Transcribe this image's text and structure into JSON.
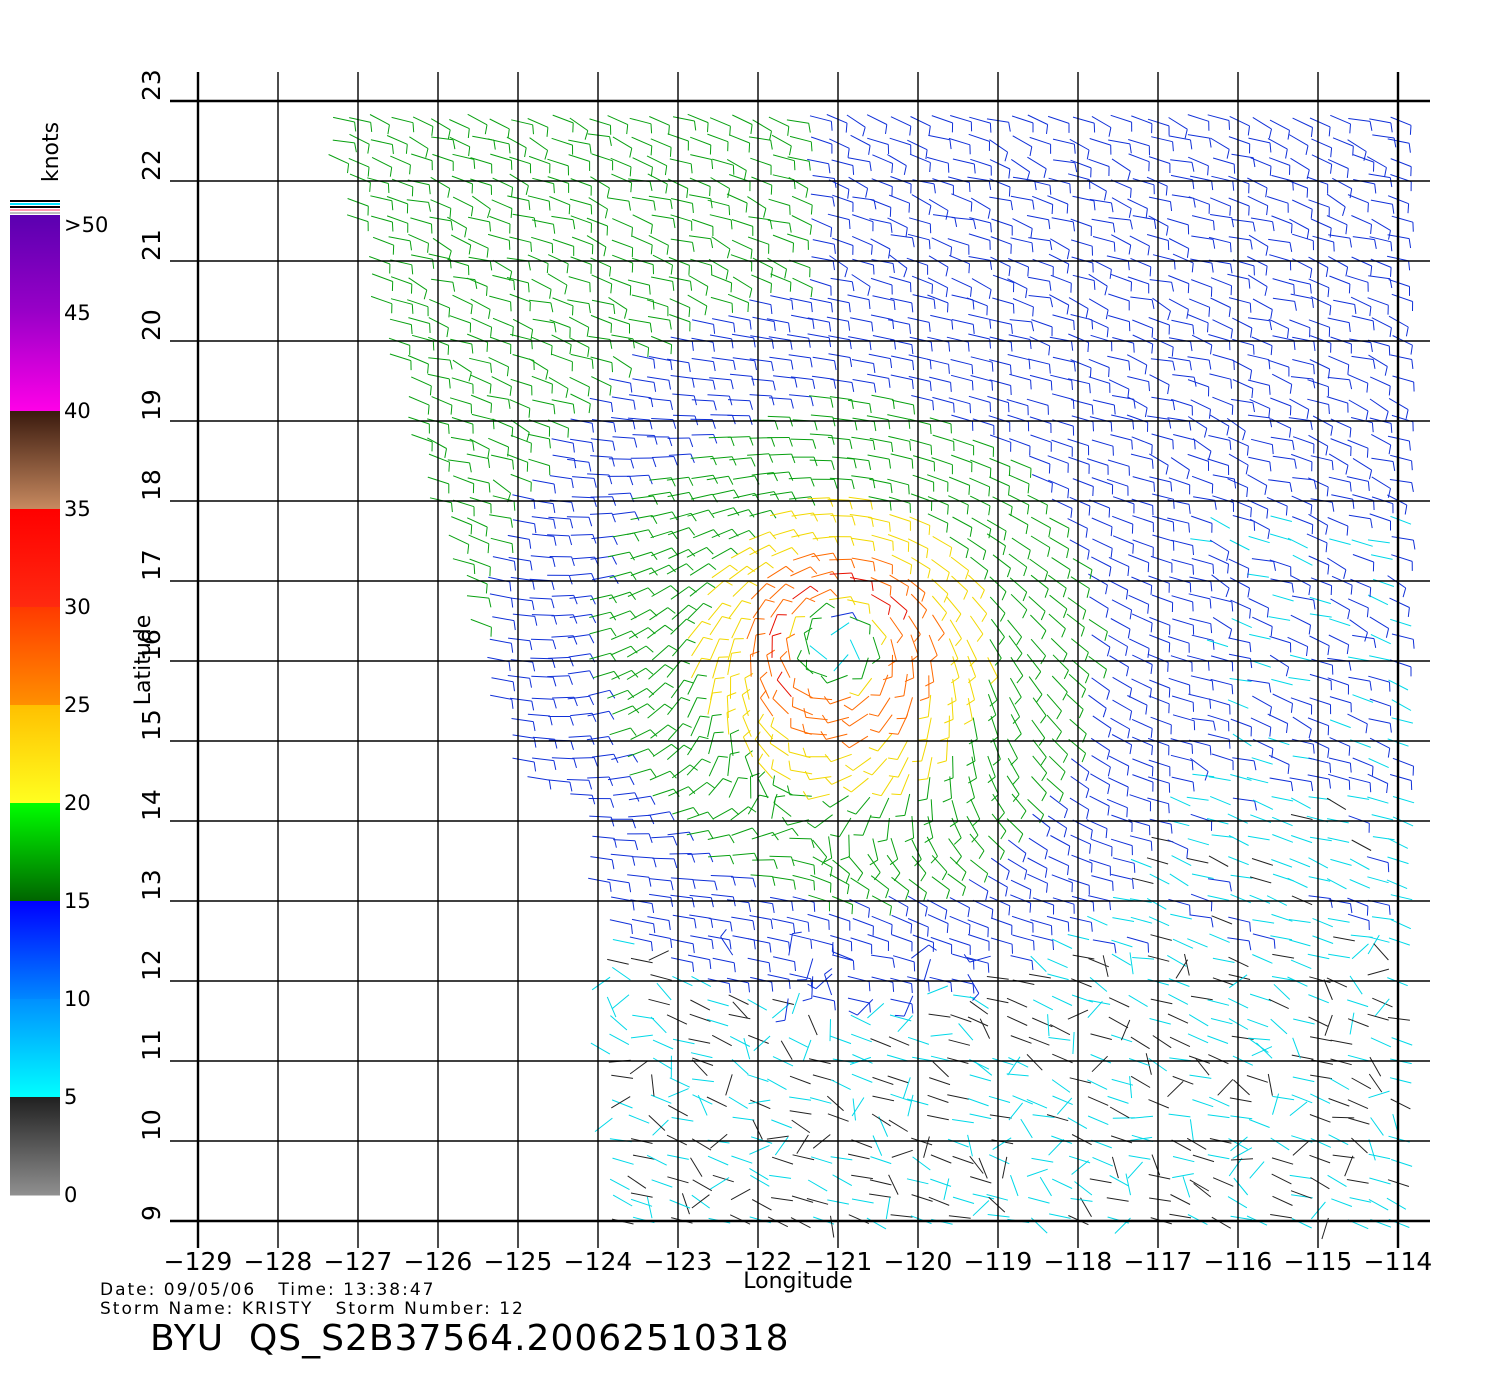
{
  "map": {
    "lon_range": [
      -129,
      -114
    ],
    "lat_range": [
      9,
      23
    ],
    "lon_ticks": [
      "-129",
      "-128",
      "-127",
      "-126",
      "-125",
      "-124",
      "-123",
      "-122",
      "-121",
      "-120",
      "-119",
      "-118",
      "-117",
      "-116",
      "-115",
      "-114"
    ],
    "lat_ticks": [
      "9",
      "10",
      "11",
      "12",
      "13",
      "14",
      "15",
      "16",
      "17",
      "18",
      "19",
      "20",
      "21",
      "22",
      "23"
    ],
    "xlabel": "Longitude",
    "ylabel": "Latitude",
    "storm_center": {
      "lon": -121.0,
      "lat": 16.2
    },
    "field": "wind vectors (barbs), colored by speed"
  },
  "colorbar": {
    "unit_label": "knots",
    "labels": [
      ">50",
      "45",
      "40",
      "35",
      "30",
      "25",
      "20",
      "15",
      "10",
      "5",
      "0"
    ],
    "bands": [
      {
        "range": ">50",
        "top": "#5a00b0",
        "bottom": "#9a00c8"
      },
      {
        "range": "40-50",
        "top": "#9a00c8",
        "bottom": "#ff00e8"
      },
      {
        "range": "35-40",
        "top": "#3a1a0e",
        "bottom": "#c88a60"
      },
      {
        "range": "30-35",
        "top": "#ff0000",
        "bottom": "#ff2a10"
      },
      {
        "range": "25-30",
        "top": "#ff3a00",
        "bottom": "#ff9000"
      },
      {
        "range": "20-25",
        "top": "#ffc000",
        "bottom": "#ffff20"
      },
      {
        "range": "15-20",
        "top": "#00ff00",
        "bottom": "#006400"
      },
      {
        "range": "10-15",
        "top": "#0000ff",
        "bottom": "#0088ff"
      },
      {
        "range": "5-10",
        "top": "#0090ff",
        "bottom": "#00ffff"
      },
      {
        "range": "0-5",
        "top": "#202020",
        "bottom": "#909090"
      }
    ]
  },
  "footer": {
    "date_label": "Date:",
    "date": "09/05/06",
    "time_label": "Time:",
    "time": "13:38:47",
    "storm_name_label": "Storm Name:",
    "storm_name": "KRISTY",
    "storm_number_label": "Storm Number:",
    "storm_number": "12",
    "run_id": "BYU  QS_S2B37564.20062510318"
  }
}
